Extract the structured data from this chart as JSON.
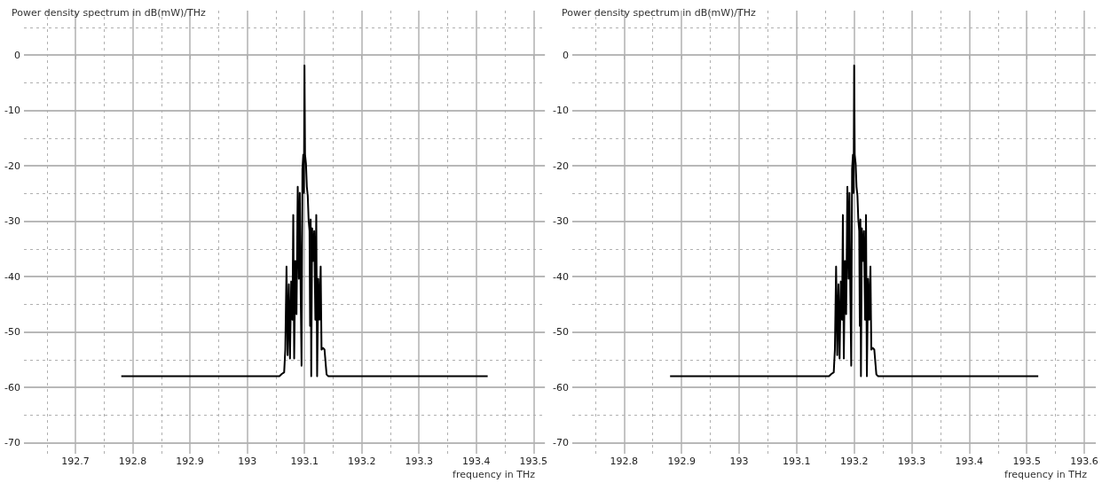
{
  "chart_data": [
    {
      "type": "line",
      "ylabel": "Power density spectrum in dB(mW)/THz",
      "xlabel": "frequency in THz",
      "xlim": [
        192.61,
        193.52
      ],
      "xticks": [
        192.7,
        192.8,
        192.9,
        193,
        193.1,
        193.2,
        193.3,
        193.4,
        193.5
      ],
      "ylim": [
        -72,
        8
      ],
      "yticks": [
        -70,
        -60,
        -50,
        -40,
        -30,
        -20,
        -10,
        0
      ],
      "grid": true,
      "marker": "none",
      "line_style": "solid",
      "series": [
        {
          "color": "#000000",
          "x": [
            192.78,
            193.0562,
            193.0603,
            193.0645,
            193.0665,
            193.0686,
            193.0706,
            193.0727,
            193.0747,
            193.0768,
            193.0789,
            193.0804,
            193.082,
            193.084,
            193.0861,
            193.0882,
            193.0902,
            193.0918,
            193.0933,
            193.0949,
            193.0964,
            193.0979,
            193.099,
            193.1,
            193.101,
            193.1026,
            193.1041,
            193.1057,
            193.1072,
            193.1088,
            193.1098,
            193.1108,
            193.1118,
            193.1134,
            193.1149,
            193.117,
            193.119,
            193.1206,
            193.1221,
            193.1242,
            193.1262,
            193.1283,
            193.1298,
            193.1324,
            193.135,
            193.1386,
            193.1417,
            193.42
          ],
          "values": [
            -58,
            -58,
            -57.6,
            -57.3,
            -53.2,
            -38.2,
            -54.2,
            -41.4,
            -54.8,
            -40.9,
            -47.8,
            -28.9,
            -54.8,
            -37.2,
            -46.8,
            -23.8,
            -40.4,
            -24.9,
            -42.5,
            -56.1,
            -20.6,
            -18,
            -24.9,
            -1.9,
            -18,
            -19.6,
            -23.8,
            -25.4,
            -29.7,
            -31.8,
            -48.9,
            -29.7,
            -58,
            -31.3,
            -37.2,
            -31.8,
            -47.8,
            -28.9,
            -58,
            -40.4,
            -47.8,
            -38.2,
            -53.2,
            -52.9,
            -53.2,
            -57.7,
            -58,
            -58
          ]
        }
      ]
    },
    {
      "type": "line",
      "ylabel": "Power density spectrum in dB(mW)/THz",
      "xlabel": "frequency in THz",
      "xlim": [
        192.71,
        193.62
      ],
      "xticks": [
        192.8,
        192.9,
        193,
        193.1,
        193.2,
        193.3,
        193.4,
        193.5,
        193.6
      ],
      "ylim": [
        -72,
        8
      ],
      "yticks": [
        -70,
        -60,
        -50,
        -40,
        -30,
        -20,
        -10,
        0
      ],
      "grid": true,
      "marker": "none",
      "line_style": "solid",
      "series": [
        {
          "color": "#000000",
          "x": [
            192.88,
            193.1562,
            193.1603,
            193.1645,
            193.1665,
            193.1686,
            193.1706,
            193.1727,
            193.1747,
            193.1768,
            193.1789,
            193.1804,
            193.182,
            193.184,
            193.1861,
            193.1882,
            193.1902,
            193.1918,
            193.1933,
            193.1949,
            193.1964,
            193.1979,
            193.199,
            193.2,
            193.201,
            193.2026,
            193.2041,
            193.2057,
            193.2072,
            193.2088,
            193.2098,
            193.2108,
            193.2118,
            193.2134,
            193.2149,
            193.217,
            193.219,
            193.2206,
            193.2221,
            193.2242,
            193.2262,
            193.2283,
            193.2298,
            193.2324,
            193.235,
            193.2386,
            193.2417,
            193.52
          ],
          "values": [
            -58,
            -58,
            -57.6,
            -57.3,
            -53.2,
            -38.2,
            -54.2,
            -41.4,
            -54.8,
            -40.9,
            -47.8,
            -28.9,
            -54.8,
            -37.2,
            -46.8,
            -23.8,
            -40.4,
            -24.9,
            -42.5,
            -56.1,
            -20.6,
            -18,
            -24.9,
            -1.9,
            -18,
            -19.6,
            -23.8,
            -25.4,
            -29.7,
            -31.8,
            -48.9,
            -29.7,
            -58,
            -31.3,
            -37.2,
            -31.8,
            -47.8,
            -28.9,
            -58,
            -40.4,
            -47.8,
            -38.2,
            -53.2,
            -52.9,
            -53.2,
            -57.7,
            -58,
            -58
          ]
        }
      ]
    }
  ]
}
